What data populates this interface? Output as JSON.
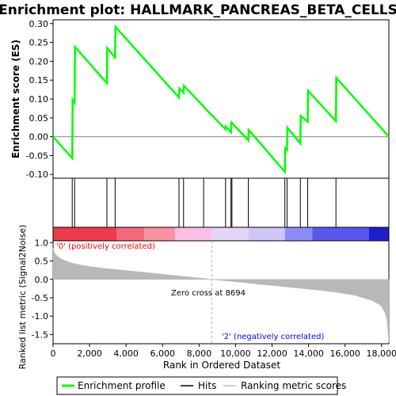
{
  "chart_data": {
    "type": "line",
    "title": "Enrichment plot: HALLMARK_PANCREAS_BETA_CELLS",
    "top_panel": {
      "ylabel": "Enrichment score (ES)",
      "ylim": [
        -0.11,
        0.31
      ],
      "yticks": [
        -0.1,
        -0.05,
        0.0,
        0.05,
        0.1,
        0.15,
        0.2,
        0.25,
        0.3
      ],
      "ytick_labels": [
        "-0.10",
        "-0.05",
        "0.00",
        "0.05",
        "0.10",
        "0.15",
        "0.20",
        "0.25",
        "0.30"
      ],
      "series": [
        {
          "name": "Enrichment profile",
          "color": "#00ff00",
          "x": [
            0,
            1050,
            1070,
            1180,
            1200,
            2950,
            2970,
            3400,
            3420,
            6900,
            6920,
            7150,
            7170,
            8250,
            8270,
            9450,
            9470,
            9750,
            9770,
            10700,
            10720,
            12700,
            12720,
            12820,
            12840,
            13550,
            13570,
            13950,
            13970,
            15500,
            15520,
            18400
          ],
          "y": [
            0.0,
            -0.057,
            0.098,
            0.09,
            0.238,
            0.142,
            0.235,
            0.21,
            0.291,
            0.104,
            0.128,
            0.117,
            0.135,
            0.08,
            0.078,
            0.02,
            0.027,
            0.012,
            0.038,
            -0.01,
            0.018,
            -0.093,
            -0.03,
            -0.035,
            0.024,
            -0.018,
            0.055,
            0.04,
            0.122,
            0.041,
            0.156,
            0.0
          ]
        }
      ],
      "hits": [
        1050,
        1180,
        2950,
        3400,
        6900,
        7150,
        8250,
        9450,
        9750,
        9800,
        10700,
        12700,
        12820,
        13550,
        13950,
        15500
      ]
    },
    "bottom_panel": {
      "ylabel": "Ranked list metric (Signal2Noise)",
      "ylim": [
        -1.75,
        1.05
      ],
      "yticks": [
        -1.5,
        -1.0,
        -0.5,
        0.0,
        0.5,
        1.0
      ],
      "ytick_labels": [
        "-1.5",
        "-1.0",
        "-0.5",
        "0.0",
        "0.5",
        "1.0"
      ],
      "metric_x": [
        0,
        100,
        300,
        600,
        1000,
        1500,
        2000,
        3000,
        4000,
        5000,
        6000,
        7000,
        8000,
        8694,
        9500,
        10500,
        11500,
        12500,
        13500,
        14500,
        15500,
        16500,
        17000,
        17500,
        17800,
        18000,
        18200,
        18300,
        18350,
        18400
      ],
      "metric_y": [
        0.85,
        0.7,
        0.6,
        0.52,
        0.45,
        0.39,
        0.35,
        0.29,
        0.24,
        0.19,
        0.14,
        0.09,
        0.04,
        0.0,
        -0.04,
        -0.09,
        -0.14,
        -0.19,
        -0.24,
        -0.29,
        -0.35,
        -0.43,
        -0.5,
        -0.58,
        -0.66,
        -0.74,
        -0.92,
        -1.1,
        -1.4,
        -1.72
      ],
      "zero_cross_label": "Zero cross at 8694",
      "zero_cross": 8694,
      "pos_label": "'0' (positively correlated)",
      "neg_label": "'2' (negatively correlated)",
      "pos_color": "#ff0000",
      "neg_color": "#0000ff"
    },
    "xlabel": "Rank in Ordered Dataset",
    "xlim": [
      0,
      18400
    ],
    "xticks": [
      0,
      2000,
      4000,
      6000,
      8000,
      10000,
      12000,
      14000,
      16000,
      18000
    ],
    "xtick_labels": [
      "0",
      "2,000",
      "4,000",
      "6,000",
      "8,000",
      "10,000",
      "12,000",
      "14,000",
      "16,000",
      "18,000"
    ],
    "heatbar": [
      {
        "from": 0,
        "to": 3500,
        "color": "#ef3a4a"
      },
      {
        "from": 3500,
        "to": 5000,
        "color": "#f6697a"
      },
      {
        "from": 5000,
        "to": 6700,
        "color": "#f992a2"
      },
      {
        "from": 6700,
        "to": 8694,
        "color": "#fbbfe6"
      },
      {
        "from": 8694,
        "to": 10700,
        "color": "#e4d5f7"
      },
      {
        "from": 10700,
        "to": 12700,
        "color": "#cfc6f7"
      },
      {
        "from": 12700,
        "to": 14200,
        "color": "#8c8cf9"
      },
      {
        "from": 14200,
        "to": 17300,
        "color": "#5858ee"
      },
      {
        "from": 17300,
        "to": 18400,
        "color": "#1f1fcc"
      }
    ],
    "legend": {
      "items": [
        {
          "name": "Enrichment profile",
          "color": "#00ff00"
        },
        {
          "name": "Hits",
          "color": "#000000"
        },
        {
          "name": "Ranking metric scores",
          "color": "#c0c0c0"
        }
      ],
      "position": "bottom"
    }
  }
}
